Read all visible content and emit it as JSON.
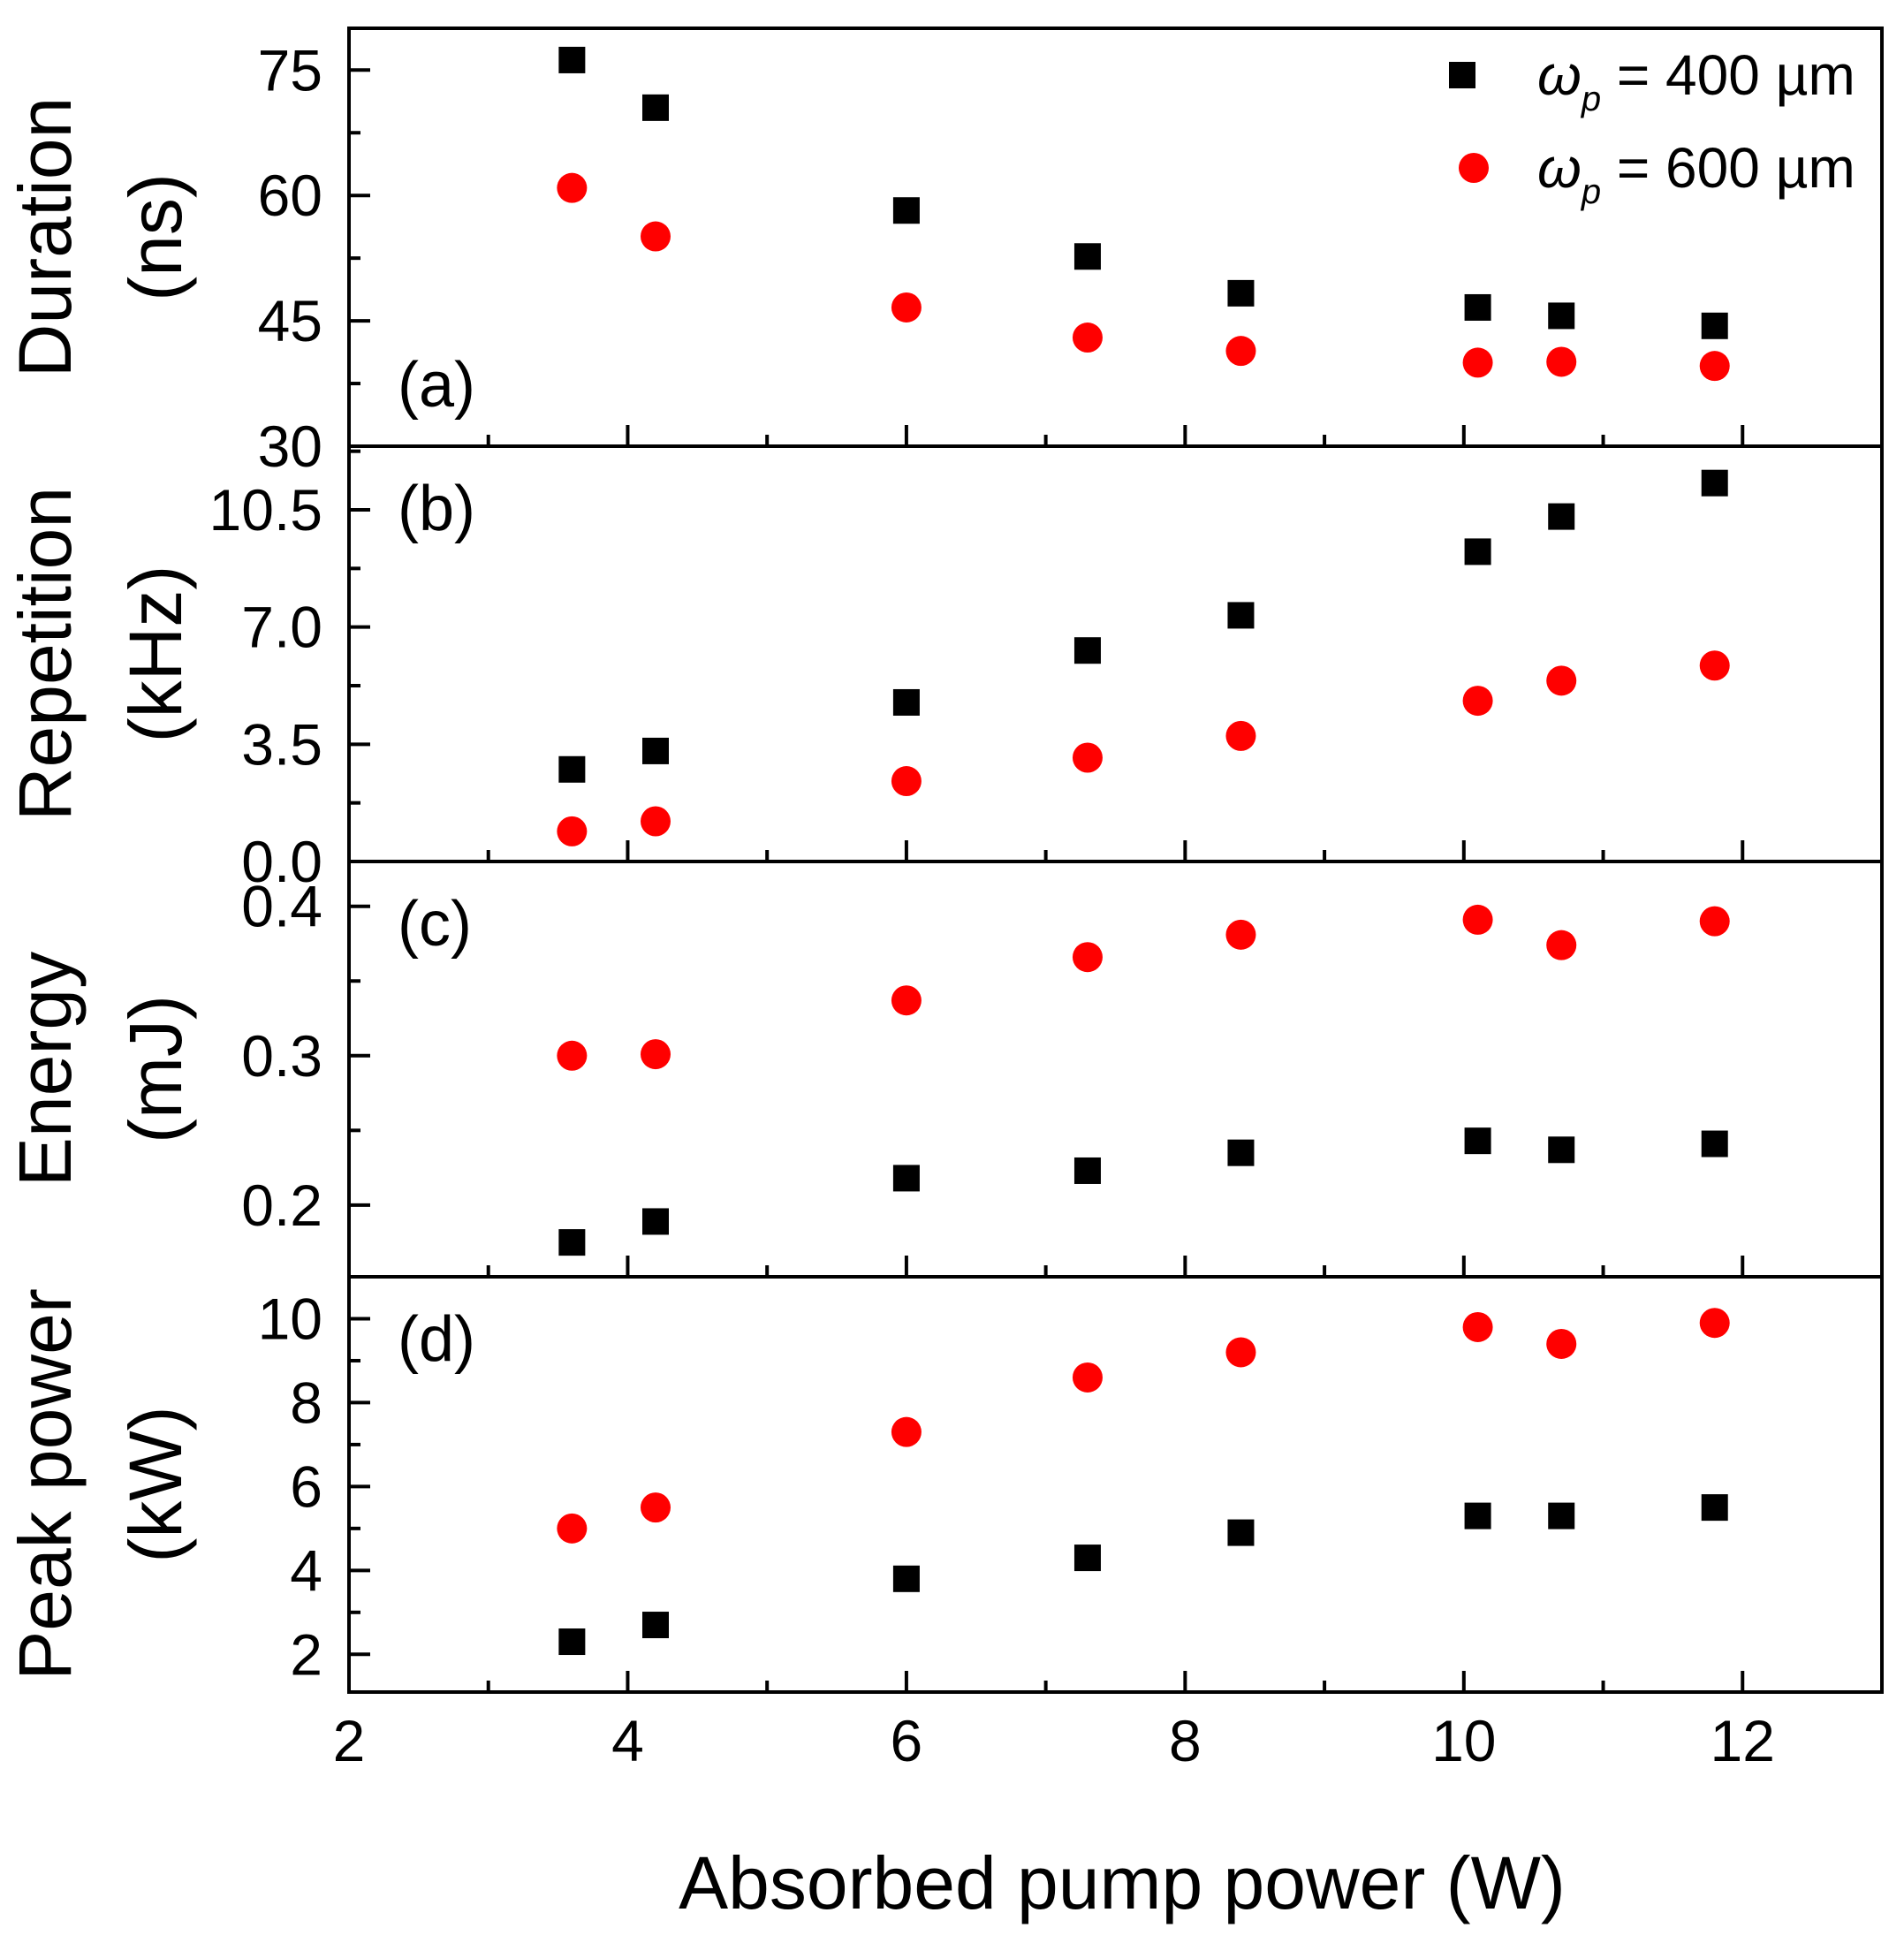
{
  "chart_data": {
    "type": "scatter",
    "xlabel": "Absorbed pump power (W)",
    "xlim": [
      2,
      13
    ],
    "x_ticks": [
      "2",
      "4",
      "6",
      "8",
      "10",
      "12"
    ],
    "x": [
      3.6,
      4.2,
      6.0,
      7.3,
      8.4,
      10.1,
      10.7,
      11.8
    ],
    "legend": {
      "position": "top-right",
      "entries": [
        {
          "symbol": "ω",
          "sub": "p",
          "text": " = 400 µm",
          "color": "#000000",
          "marker": "square"
        },
        {
          "symbol": "ω",
          "sub": "p",
          "text": " = 600 µm",
          "color": "#ff0000",
          "marker": "circle"
        }
      ]
    },
    "panels": [
      {
        "label": "(a)",
        "ylabel_lines": [
          "Duration",
          "(ns)"
        ],
        "ylim": [
          30,
          80
        ],
        "yticks": [
          30,
          45,
          60,
          75
        ],
        "ytick_labels": [
          "30",
          "45",
          "60",
          "75"
        ],
        "series": [
          {
            "name": "ωp = 400 µm",
            "values": [
              76.2,
              70.5,
              58.2,
              52.7,
              48.3,
              46.6,
              45.6,
              44.4
            ]
          },
          {
            "name": "ωp = 600 µm",
            "values": [
              60.9,
              55.1,
              46.6,
              43.0,
              41.4,
              40.0,
              40.1,
              39.6
            ]
          }
        ]
      },
      {
        "label": "(b)",
        "ylabel_lines": [
          "Repetition",
          "(kHz)"
        ],
        "ylim": [
          0,
          12.4
        ],
        "yticks": [
          0,
          3.5,
          7.0,
          10.5
        ],
        "ytick_labels": [
          "0.0",
          "3.5",
          "7.0",
          "10.5"
        ],
        "series": [
          {
            "name": "ωp = 400 µm",
            "values": [
              2.75,
              3.3,
              4.75,
              6.3,
              7.35,
              9.25,
              10.3,
              11.3
            ]
          },
          {
            "name": "ωp = 600 µm",
            "values": [
              0.9,
              1.2,
              2.4,
              3.1,
              3.75,
              4.8,
              5.4,
              5.85
            ]
          }
        ]
      },
      {
        "label": "(c)",
        "ylabel_lines": [
          "Energy",
          "(mJ)"
        ],
        "ylim": [
          0.152,
          0.43
        ],
        "yticks": [
          0.2,
          0.3,
          0.4
        ],
        "ytick_labels": [
          "0.2",
          "0.3",
          "0.4"
        ],
        "series": [
          {
            "name": "ωp = 400 µm",
            "values": [
              0.175,
              0.189,
              0.218,
              0.223,
              0.235,
              0.243,
              0.237,
              0.241
            ]
          },
          {
            "name": "ωp = 600 µm",
            "values": [
              0.3,
              0.301,
              0.337,
              0.366,
              0.381,
              0.391,
              0.374,
              0.39
            ]
          }
        ]
      },
      {
        "label": "(d)",
        "ylabel_lines": [
          "Peak power",
          "(kW)"
        ],
        "ylim": [
          1.1,
          11.0
        ],
        "yticks": [
          2,
          4,
          6,
          8,
          10
        ],
        "ytick_labels": [
          "2",
          "4",
          "6",
          "8",
          "10"
        ],
        "series": [
          {
            "name": "ωp = 400 µm",
            "values": [
              2.3,
              2.7,
              3.8,
              4.3,
              4.9,
              5.3,
              5.3,
              5.5
            ]
          },
          {
            "name": "ωp = 600 µm",
            "values": [
              5.0,
              5.5,
              7.3,
              8.6,
              9.2,
              9.8,
              9.4,
              9.9
            ]
          }
        ]
      }
    ]
  }
}
